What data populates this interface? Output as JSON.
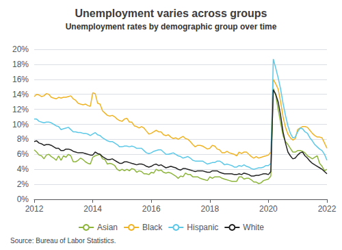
{
  "chart_data": {
    "type": "line",
    "title": "Unemployment varies across groups",
    "subtitle": "Unemployment rates by demographic group over time",
    "source": "Source: Bureau of Labor Statistics.",
    "xlim": [
      2012,
      2022
    ],
    "xticks": [
      2012,
      2014,
      2016,
      2018,
      2020,
      2022
    ],
    "ylim": [
      0,
      0.2
    ],
    "yticks": [
      {
        "value": 0.0,
        "label": "0%"
      },
      {
        "value": 0.02,
        "label": "2%"
      },
      {
        "value": 0.04,
        "label": "4%"
      },
      {
        "value": 0.06,
        "label": "6%"
      },
      {
        "value": 0.08,
        "label": "8%"
      },
      {
        "value": 0.1,
        "label": "10%"
      },
      {
        "value": 0.12,
        "label": "12%"
      },
      {
        "value": 0.14,
        "label": "14%"
      },
      {
        "value": 0.16,
        "label": "16%"
      },
      {
        "value": 0.18,
        "label": "18%"
      },
      {
        "value": 0.2,
        "label": "20%"
      }
    ],
    "grid": true,
    "legend": "bottom",
    "x": [
      2012.0,
      2012.083,
      2012.167,
      2012.25,
      2012.333,
      2012.417,
      2012.5,
      2012.583,
      2012.667,
      2012.75,
      2012.833,
      2012.917,
      2013.0,
      2013.083,
      2013.167,
      2013.25,
      2013.333,
      2013.417,
      2013.5,
      2013.583,
      2013.667,
      2013.75,
      2013.833,
      2013.917,
      2014.0,
      2014.083,
      2014.167,
      2014.25,
      2014.333,
      2014.417,
      2014.5,
      2014.583,
      2014.667,
      2014.75,
      2014.833,
      2014.917,
      2015.0,
      2015.083,
      2015.167,
      2015.25,
      2015.333,
      2015.417,
      2015.5,
      2015.583,
      2015.667,
      2015.75,
      2015.833,
      2015.917,
      2016.0,
      2016.083,
      2016.167,
      2016.25,
      2016.333,
      2016.417,
      2016.5,
      2016.583,
      2016.667,
      2016.75,
      2016.833,
      2016.917,
      2017.0,
      2017.083,
      2017.167,
      2017.25,
      2017.333,
      2017.417,
      2017.5,
      2017.583,
      2017.667,
      2017.75,
      2017.833,
      2017.917,
      2018.0,
      2018.083,
      2018.167,
      2018.25,
      2018.333,
      2018.417,
      2018.5,
      2018.583,
      2018.667,
      2018.75,
      2018.833,
      2018.917,
      2019.0,
      2019.083,
      2019.167,
      2019.25,
      2019.333,
      2019.417,
      2019.5,
      2019.583,
      2019.667,
      2019.75,
      2019.833,
      2019.917,
      2020.0,
      2020.083,
      2020.167,
      2020.25,
      2020.333,
      2020.417,
      2020.5,
      2020.583,
      2020.667,
      2020.75,
      2020.833,
      2020.917,
      2021.0,
      2021.083,
      2021.167,
      2021.25,
      2021.333,
      2021.417,
      2021.5,
      2021.583,
      2021.667,
      2021.75,
      2021.833,
      2021.917,
      2022.0
    ],
    "series": [
      {
        "name": "Asian",
        "color": "#8db53c",
        "values": [
          0.066,
          0.063,
          0.059,
          0.058,
          0.054,
          0.059,
          0.06,
          0.057,
          0.055,
          0.052,
          0.058,
          0.052,
          0.058,
          0.056,
          0.06,
          0.058,
          0.05,
          0.05,
          0.052,
          0.055,
          0.053,
          0.05,
          0.048,
          0.047,
          0.056,
          0.058,
          0.059,
          0.06,
          0.054,
          0.053,
          0.047,
          0.048,
          0.047,
          0.045,
          0.04,
          0.038,
          0.04,
          0.038,
          0.04,
          0.038,
          0.041,
          0.04,
          0.036,
          0.038,
          0.037,
          0.034,
          0.034,
          0.033,
          0.036,
          0.035,
          0.04,
          0.038,
          0.039,
          0.036,
          0.035,
          0.036,
          0.035,
          0.033,
          0.031,
          0.028,
          0.031,
          0.03,
          0.035,
          0.033,
          0.033,
          0.03,
          0.03,
          0.03,
          0.028,
          0.027,
          0.026,
          0.025,
          0.03,
          0.028,
          0.03,
          0.03,
          0.03,
          0.028,
          0.027,
          0.026,
          0.025,
          0.024,
          0.024,
          0.024,
          0.03,
          0.03,
          0.027,
          0.028,
          0.028,
          0.026,
          0.023,
          0.023,
          0.021,
          0.022,
          0.025,
          0.026,
          0.027,
          0.031,
          0.148,
          0.139,
          0.12,
          0.102,
          0.085,
          0.077,
          0.073,
          0.068,
          0.063,
          0.063,
          0.065,
          0.065,
          0.064,
          0.062,
          0.058,
          0.056,
          0.054,
          0.056,
          0.058,
          0.048,
          0.044,
          0.038,
          0.04
        ]
      },
      {
        "name": "Black",
        "color": "#f0b323",
        "values": [
          0.137,
          0.14,
          0.139,
          0.137,
          0.138,
          0.141,
          0.14,
          0.136,
          0.135,
          0.134,
          0.136,
          0.135,
          0.136,
          0.136,
          0.137,
          0.138,
          0.134,
          0.132,
          0.128,
          0.127,
          0.126,
          0.127,
          0.125,
          0.124,
          0.142,
          0.141,
          0.128,
          0.127,
          0.118,
          0.115,
          0.112,
          0.111,
          0.112,
          0.11,
          0.107,
          0.105,
          0.104,
          0.107,
          0.108,
          0.103,
          0.103,
          0.098,
          0.097,
          0.095,
          0.097,
          0.095,
          0.091,
          0.087,
          0.088,
          0.09,
          0.092,
          0.09,
          0.09,
          0.086,
          0.085,
          0.086,
          0.083,
          0.081,
          0.082,
          0.08,
          0.082,
          0.084,
          0.081,
          0.08,
          0.077,
          0.073,
          0.07,
          0.072,
          0.072,
          0.071,
          0.069,
          0.067,
          0.068,
          0.072,
          0.071,
          0.067,
          0.066,
          0.062,
          0.062,
          0.064,
          0.062,
          0.061,
          0.06,
          0.058,
          0.063,
          0.061,
          0.063,
          0.063,
          0.06,
          0.057,
          0.055,
          0.057,
          0.055,
          0.056,
          0.057,
          0.058,
          0.059,
          0.063,
          0.16,
          0.154,
          0.147,
          0.13,
          0.11,
          0.096,
          0.087,
          0.082,
          0.079,
          0.081,
          0.093,
          0.095,
          0.097,
          0.097,
          0.096,
          0.092,
          0.088,
          0.085,
          0.083,
          0.083,
          0.082,
          0.075,
          0.068
        ]
      },
      {
        "name": "Hispanic",
        "color": "#5bc8e8",
        "values": [
          0.107,
          0.107,
          0.104,
          0.103,
          0.102,
          0.103,
          0.103,
          0.102,
          0.1,
          0.098,
          0.097,
          0.093,
          0.094,
          0.095,
          0.096,
          0.093,
          0.09,
          0.09,
          0.089,
          0.089,
          0.088,
          0.088,
          0.087,
          0.085,
          0.087,
          0.089,
          0.086,
          0.085,
          0.082,
          0.08,
          0.078,
          0.077,
          0.077,
          0.075,
          0.073,
          0.07,
          0.07,
          0.071,
          0.071,
          0.07,
          0.071,
          0.07,
          0.068,
          0.068,
          0.068,
          0.065,
          0.062,
          0.061,
          0.062,
          0.064,
          0.065,
          0.066,
          0.066,
          0.063,
          0.06,
          0.06,
          0.061,
          0.062,
          0.06,
          0.058,
          0.057,
          0.055,
          0.056,
          0.057,
          0.055,
          0.052,
          0.051,
          0.051,
          0.051,
          0.051,
          0.049,
          0.047,
          0.048,
          0.049,
          0.049,
          0.051,
          0.051,
          0.049,
          0.046,
          0.047,
          0.046,
          0.045,
          0.043,
          0.043,
          0.045,
          0.044,
          0.046,
          0.044,
          0.043,
          0.041,
          0.04,
          0.041,
          0.042,
          0.042,
          0.043,
          0.045,
          0.045,
          0.048,
          0.187,
          0.175,
          0.162,
          0.147,
          0.128,
          0.112,
          0.098,
          0.088,
          0.082,
          0.083,
          0.09,
          0.095,
          0.094,
          0.09,
          0.088,
          0.082,
          0.078,
          0.073,
          0.07,
          0.067,
          0.065,
          0.06,
          0.052
        ]
      },
      {
        "name": "White",
        "color": "#222222",
        "values": [
          0.077,
          0.078,
          0.075,
          0.074,
          0.072,
          0.073,
          0.073,
          0.072,
          0.07,
          0.068,
          0.068,
          0.065,
          0.065,
          0.067,
          0.067,
          0.066,
          0.064,
          0.063,
          0.062,
          0.062,
          0.062,
          0.061,
          0.06,
          0.059,
          0.059,
          0.063,
          0.061,
          0.06,
          0.057,
          0.055,
          0.053,
          0.053,
          0.054,
          0.052,
          0.05,
          0.048,
          0.048,
          0.05,
          0.05,
          0.049,
          0.048,
          0.047,
          0.046,
          0.047,
          0.047,
          0.046,
          0.044,
          0.043,
          0.044,
          0.046,
          0.047,
          0.045,
          0.046,
          0.044,
          0.042,
          0.043,
          0.044,
          0.043,
          0.042,
          0.04,
          0.039,
          0.041,
          0.041,
          0.04,
          0.039,
          0.038,
          0.037,
          0.038,
          0.038,
          0.038,
          0.037,
          0.036,
          0.036,
          0.038,
          0.038,
          0.038,
          0.036,
          0.035,
          0.034,
          0.034,
          0.034,
          0.034,
          0.033,
          0.033,
          0.034,
          0.033,
          0.035,
          0.034,
          0.033,
          0.031,
          0.031,
          0.032,
          0.032,
          0.033,
          0.034,
          0.034,
          0.033,
          0.037,
          0.146,
          0.14,
          0.13,
          0.112,
          0.09,
          0.075,
          0.063,
          0.058,
          0.054,
          0.055,
          0.059,
          0.062,
          0.063,
          0.058,
          0.055,
          0.051,
          0.048,
          0.046,
          0.044,
          0.042,
          0.04,
          0.037,
          0.034
        ]
      }
    ]
  }
}
